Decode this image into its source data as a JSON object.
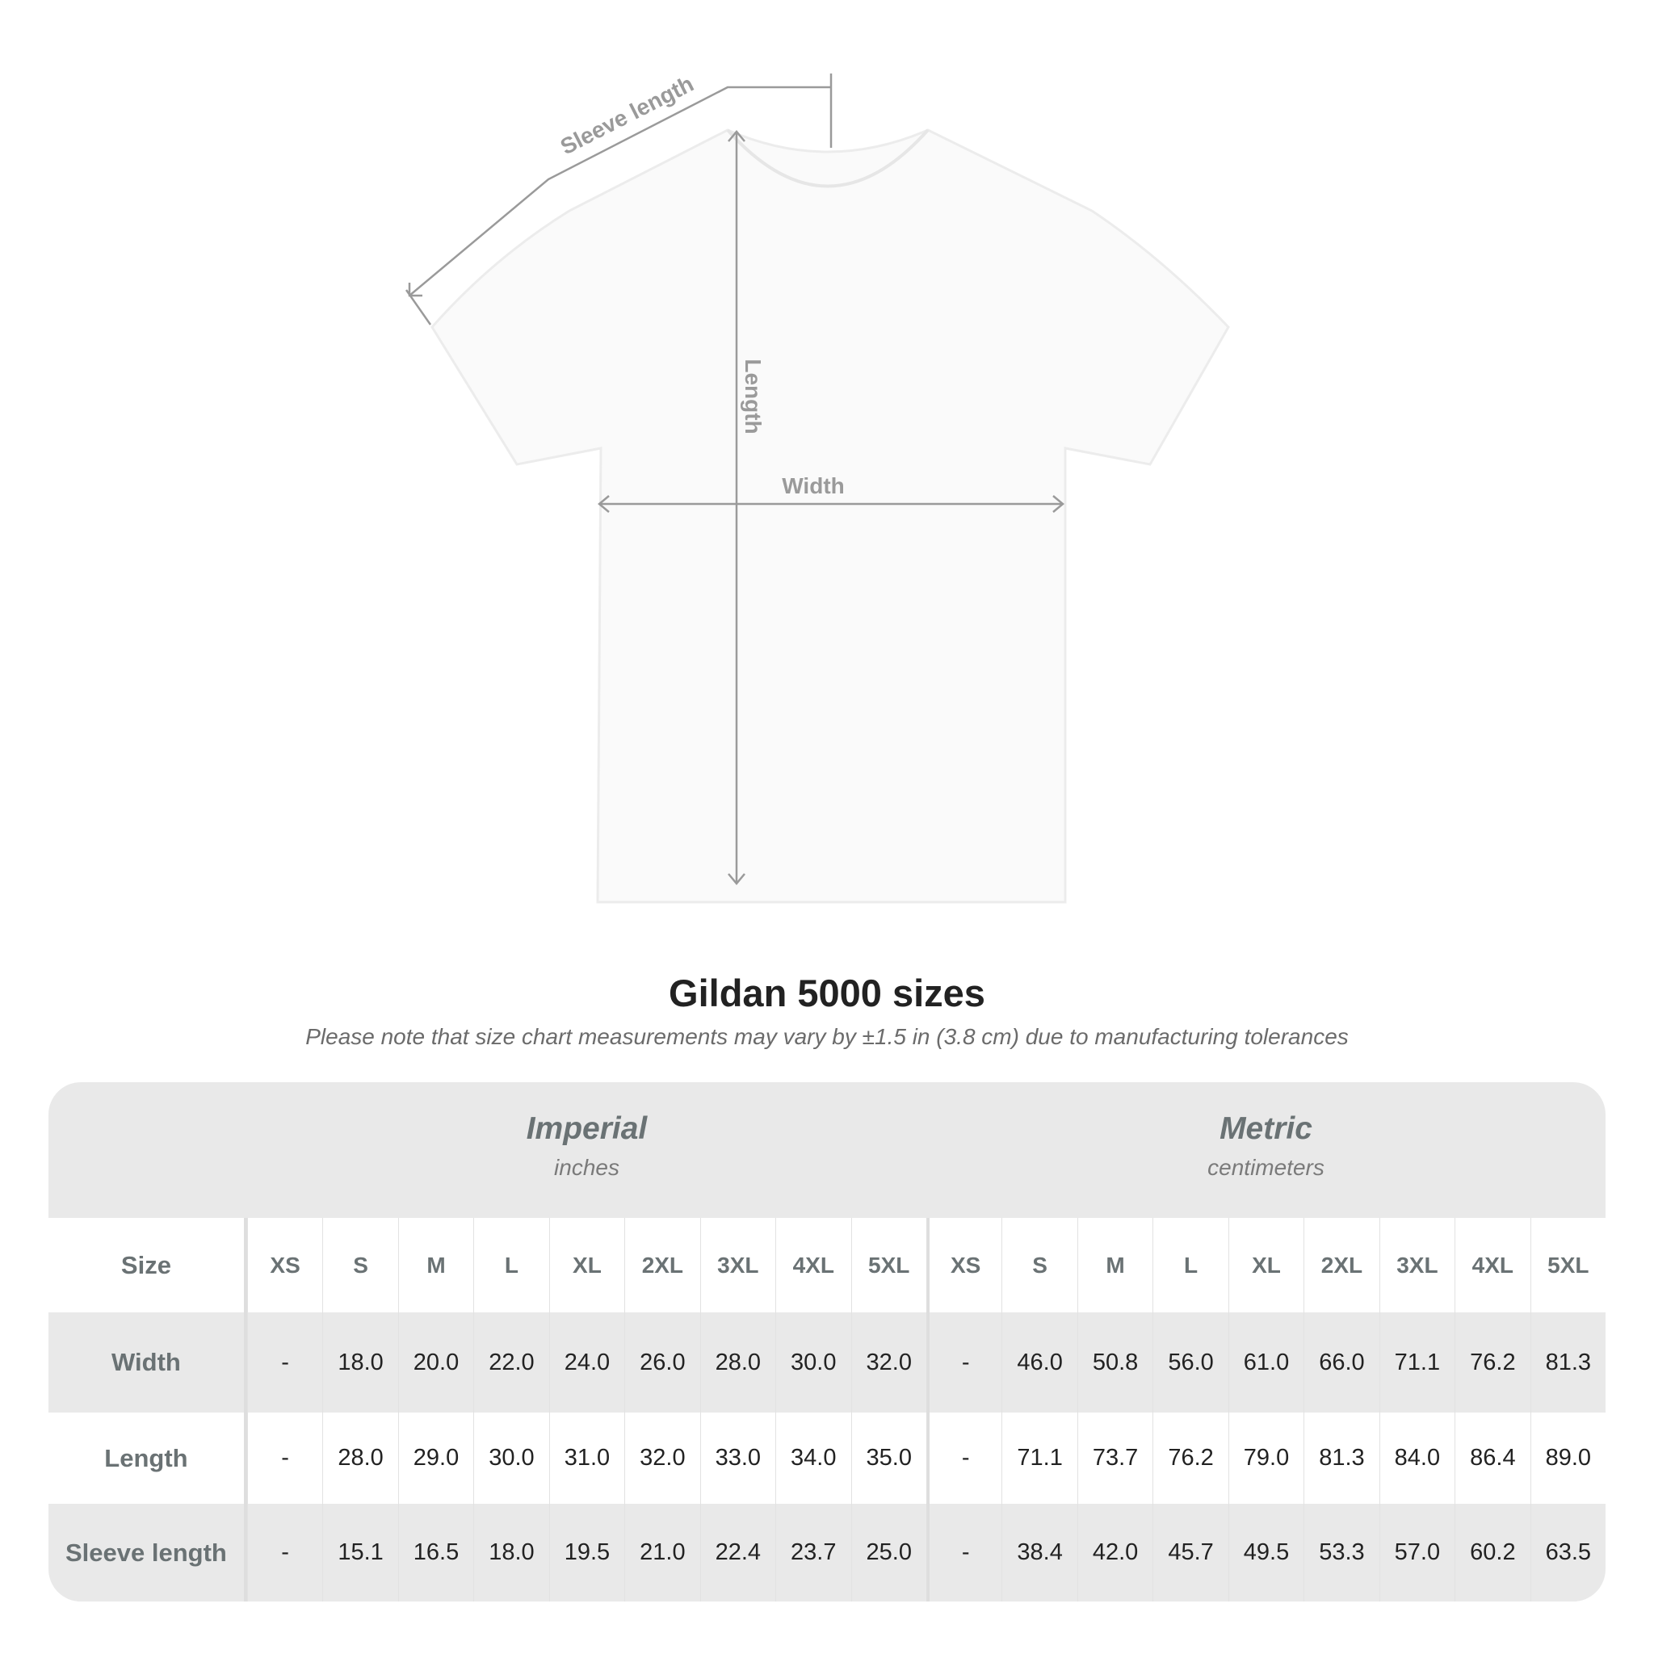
{
  "diagram": {
    "labels": {
      "sleeve_length": "Sleeve length",
      "length": "Length",
      "width": "Width"
    }
  },
  "title": "Gildan 5000 sizes",
  "note": "Please note that size chart measurements may vary by ±1.5 in (3.8 cm) due to manufacturing tolerances",
  "table": {
    "imperial": {
      "title": "Imperial",
      "unit": "inches"
    },
    "metric": {
      "title": "Metric",
      "unit": "centimeters"
    },
    "size_label": "Size",
    "sizes": [
      "XS",
      "S",
      "M",
      "L",
      "XL",
      "2XL",
      "3XL",
      "4XL",
      "5XL"
    ],
    "rows": [
      {
        "label": "Width",
        "imperial": [
          "-",
          "18.0",
          "20.0",
          "22.0",
          "24.0",
          "26.0",
          "28.0",
          "30.0",
          "32.0"
        ],
        "metric": [
          "-",
          "46.0",
          "50.8",
          "56.0",
          "61.0",
          "66.0",
          "71.1",
          "76.2",
          "81.3"
        ]
      },
      {
        "label": "Length",
        "imperial": [
          "-",
          "28.0",
          "29.0",
          "30.0",
          "31.0",
          "32.0",
          "33.0",
          "34.0",
          "35.0"
        ],
        "metric": [
          "-",
          "71.1",
          "73.7",
          "76.2",
          "79.0",
          "81.3",
          "84.0",
          "86.4",
          "89.0"
        ]
      },
      {
        "label": "Sleeve length",
        "imperial": [
          "-",
          "15.1",
          "16.5",
          "18.0",
          "19.5",
          "21.0",
          "22.4",
          "23.7",
          "25.0"
        ],
        "metric": [
          "-",
          "38.4",
          "42.0",
          "45.7",
          "49.5",
          "53.3",
          "57.0",
          "60.2",
          "63.5"
        ]
      }
    ]
  }
}
